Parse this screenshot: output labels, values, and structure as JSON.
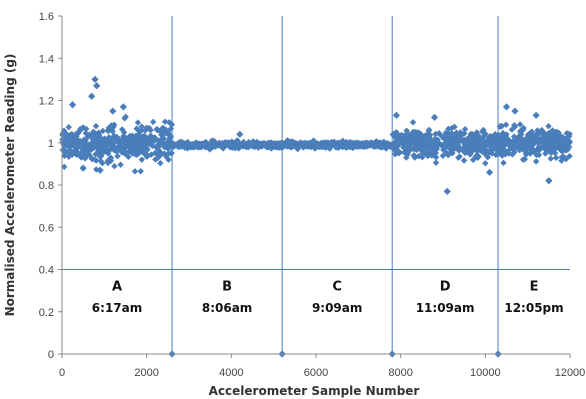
{
  "chart_data": {
    "type": "scatter",
    "xlabel": "Accelerometer  Sample Number",
    "ylabel": "Normalised Accelerometer Reading (g)",
    "xlim": [
      0,
      12000
    ],
    "ylim": [
      0,
      1.6
    ],
    "x_ticks": [
      0,
      2000,
      4000,
      6000,
      8000,
      10000,
      12000
    ],
    "y_ticks": [
      0,
      0.2,
      0.4,
      0.6,
      0.8,
      1,
      1.2,
      1.4,
      1.6
    ],
    "x_tick_labels": [
      "0",
      "2000",
      "4000",
      "6000",
      "8000",
      "10000",
      "12000"
    ],
    "y_tick_labels": [
      "0",
      "0.2",
      "0.4",
      "0.6",
      "0.8",
      "1",
      "1.2",
      "1.4",
      "1.6"
    ],
    "grid": false,
    "marker_color": "#4a7ebb",
    "line_color": "#4a7ebb",
    "horizontal_line_y": 0.4,
    "dividers": [
      2600,
      5200,
      7800,
      10300
    ],
    "segments": [
      {
        "letter": "A",
        "time": "6:17am",
        "range": [
          0,
          2600
        ],
        "center": 1.0,
        "spread": 0.075
      },
      {
        "letter": "B",
        "time": "8:06am",
        "range": [
          2600,
          5200
        ],
        "center": 0.99,
        "spread": 0.012
      },
      {
        "letter": "C",
        "time": "9:09am",
        "range": [
          5200,
          7800
        ],
        "center": 0.99,
        "spread": 0.012
      },
      {
        "letter": "D",
        "time": "11:09am",
        "range": [
          7800,
          10300
        ],
        "center": 1.0,
        "spread": 0.055
      },
      {
        "letter": "E",
        "time": "12:05pm",
        "range": [
          10300,
          12000
        ],
        "center": 1.0,
        "spread": 0.06
      }
    ],
    "outliers": [
      {
        "x": 780,
        "y": 1.3
      },
      {
        "x": 820,
        "y": 1.27
      },
      {
        "x": 700,
        "y": 1.22
      },
      {
        "x": 250,
        "y": 1.18
      },
      {
        "x": 1450,
        "y": 1.17
      },
      {
        "x": 1200,
        "y": 1.15
      },
      {
        "x": 900,
        "y": 0.87
      },
      {
        "x": 500,
        "y": 0.88
      },
      {
        "x": 4200,
        "y": 1.04
      },
      {
        "x": 7900,
        "y": 1.13
      },
      {
        "x": 9100,
        "y": 0.77
      },
      {
        "x": 8800,
        "y": 1.12
      },
      {
        "x": 10500,
        "y": 1.17
      },
      {
        "x": 10700,
        "y": 1.15
      },
      {
        "x": 11500,
        "y": 0.82
      },
      {
        "x": 11200,
        "y": 1.13
      },
      {
        "x": 10100,
        "y": 0.86
      }
    ],
    "zero_markers": [
      {
        "x": 2600,
        "y": 0
      },
      {
        "x": 5200,
        "y": 0
      },
      {
        "x": 7800,
        "y": 0
      },
      {
        "x": 10300,
        "y": 0
      }
    ]
  }
}
